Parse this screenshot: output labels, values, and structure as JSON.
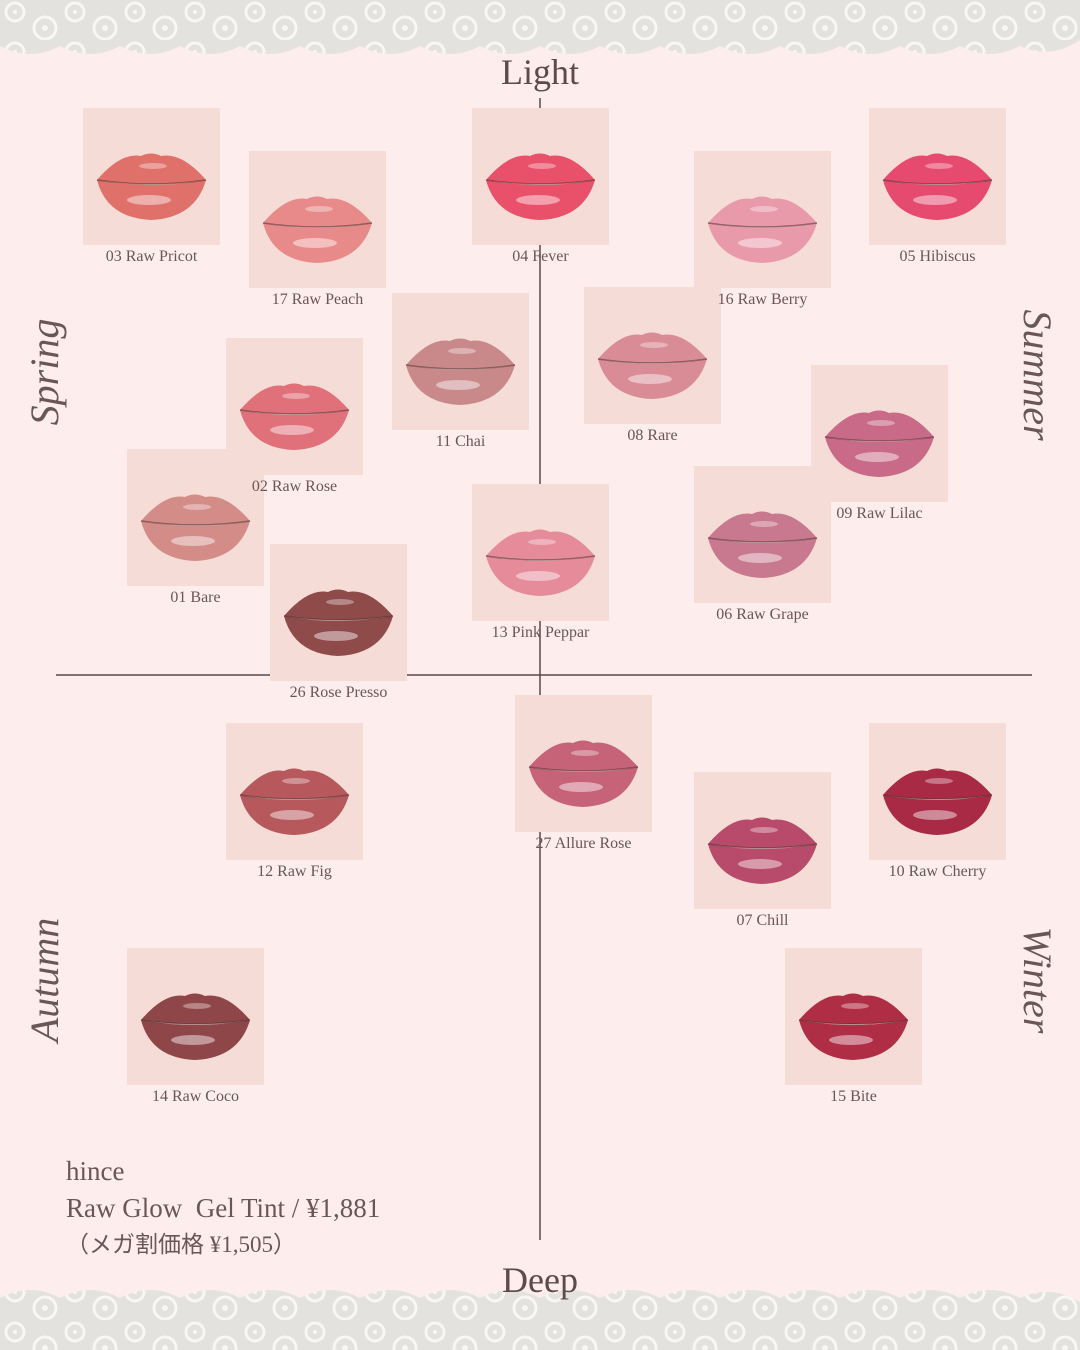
{
  "axis": {
    "top": "Light",
    "bottom": "Deep"
  },
  "seasons": [
    "Spring",
    "Summer",
    "Autumn",
    "Winter"
  ],
  "swatches": [
    {
      "label": "03 Raw Pricot",
      "color": "#e0706a"
    },
    {
      "label": "17 Raw Peach",
      "color": "#e98a8a"
    },
    {
      "label": "04 Fever",
      "color": "#e9506a"
    },
    {
      "label": "16 Raw Berry",
      "color": "#e99aaa"
    },
    {
      "label": "05 Hibiscus",
      "color": "#e64a6f"
    },
    {
      "label": "11 Chai",
      "color": "#c9898a"
    },
    {
      "label": "08 Rare",
      "color": "#d98b96"
    },
    {
      "label": "02 Raw Rose",
      "color": "#e0707a"
    },
    {
      "label": "09 Raw Lilac",
      "color": "#c96a88"
    },
    {
      "label": "01 Bare",
      "color": "#d48c88"
    },
    {
      "label": "13 Pink Peppar",
      "color": "#e58b9a"
    },
    {
      "label": "06 Raw Grape",
      "color": "#c8788f"
    },
    {
      "label": "26 Rose Presso",
      "color": "#8f4a4a"
    },
    {
      "label": "12 Raw Fig",
      "color": "#b6585c"
    },
    {
      "label": "27 Allure Rose",
      "color": "#c76378"
    },
    {
      "label": "07 Chill",
      "color": "#b84a6c"
    },
    {
      "label": "10 Raw Cherry",
      "color": "#a82a45"
    },
    {
      "label": "14 Raw Coco",
      "color": "#8f4648"
    },
    {
      "label": "15 Bite",
      "color": "#b02e45"
    }
  ],
  "product": {
    "brand": "hince",
    "name": "Raw Glow  Gel Tint / ¥1,881",
    "sale": "（メガ割価格 ¥1,505）"
  }
}
